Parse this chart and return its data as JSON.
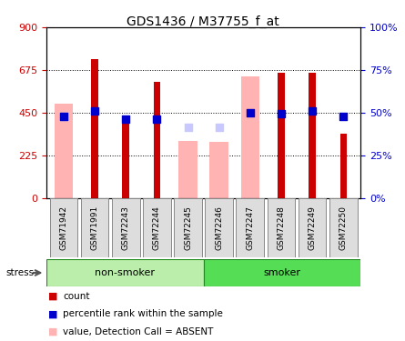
{
  "title": "GDS1436 / M37755_f_at",
  "samples": [
    "GSM71942",
    "GSM71991",
    "GSM72243",
    "GSM72244",
    "GSM72245",
    "GSM72246",
    "GSM72247",
    "GSM72248",
    "GSM72249",
    "GSM72250"
  ],
  "count_values": [
    0,
    730,
    400,
    610,
    0,
    0,
    0,
    660,
    660,
    340
  ],
  "percentile_values": [
    430,
    460,
    415,
    415,
    0,
    0,
    450,
    445,
    460,
    430
  ],
  "absent_value": [
    495,
    0,
    0,
    0,
    300,
    295,
    640,
    0,
    0,
    0
  ],
  "absent_rank": [
    430,
    0,
    0,
    0,
    370,
    370,
    0,
    0,
    0,
    0
  ],
  "non_smoker_count": 5,
  "smoker_count": 5,
  "ylim_left": [
    0,
    900
  ],
  "ylim_right": [
    0,
    100
  ],
  "yticks_left": [
    0,
    225,
    450,
    675,
    900
  ],
  "yticks_right": [
    0,
    25,
    50,
    75,
    100
  ],
  "ytick_right_labels": [
    "0%",
    "25%",
    "50%",
    "75%",
    "100%"
  ],
  "color_count": "#cc0000",
  "color_percentile": "#0000cc",
  "color_absent_value": "#ffb3b3",
  "color_absent_rank": "#c8c8ff",
  "color_nonsmoker": "#bbeeaa",
  "color_smoker": "#55dd55",
  "color_nonsmoker_border": "#44aa44",
  "color_smoker_border": "#228822"
}
